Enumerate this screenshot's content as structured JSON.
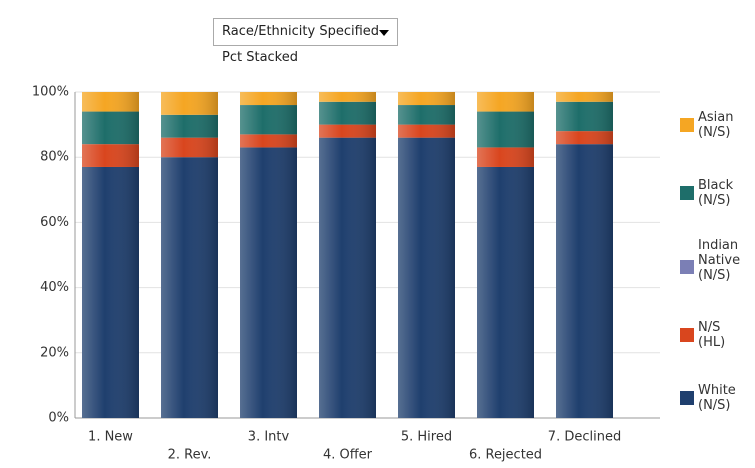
{
  "dropdown": {
    "selected": "Race/Ethnicity Specified - Pct Stacked"
  },
  "chart_data": {
    "type": "bar",
    "stacked": true,
    "categories": [
      "1. New",
      "2. Rev.",
      "3. Intv",
      "4. Offer",
      "5. Hired",
      "6. Rejected",
      "7. Declined"
    ],
    "series": [
      {
        "name": "White (N/S)",
        "color": "#1f3f6e",
        "values": [
          77,
          80,
          83,
          86,
          86,
          77,
          84
        ]
      },
      {
        "name": "N/S (HL)",
        "color": "#d9461e",
        "values": [
          7,
          6,
          4,
          4,
          4,
          6,
          4
        ]
      },
      {
        "name": "Indian Native (N/S)",
        "color": "#7b7fb5",
        "values": [
          0,
          0,
          0,
          0,
          0,
          0,
          0
        ]
      },
      {
        "name": "Black (N/S)",
        "color": "#1e6e6a",
        "values": [
          10,
          7,
          9,
          7,
          6,
          11,
          9
        ]
      },
      {
        "name": "Asian (N/S)",
        "color": "#f5a623",
        "values": [
          6,
          7,
          4,
          3,
          4,
          6,
          3
        ]
      }
    ],
    "ylim": [
      0,
      100
    ],
    "yticks": [
      {
        "value": 0,
        "label": "0%"
      },
      {
        "value": 20,
        "label": "20%"
      },
      {
        "value": 40,
        "label": "40%"
      },
      {
        "value": 60,
        "label": "60%"
      },
      {
        "value": 80,
        "label": "80%"
      },
      {
        "value": 100,
        "label": "100%"
      }
    ],
    "grid": true,
    "legend": "right"
  }
}
